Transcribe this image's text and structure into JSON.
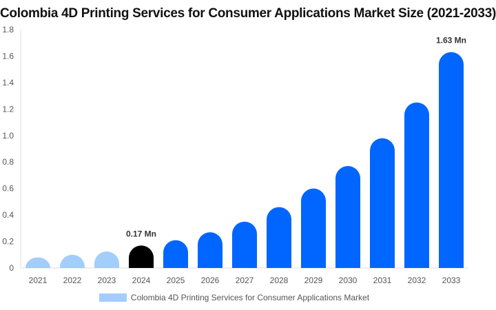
{
  "chart_data": {
    "type": "bar",
    "title": "Colombia 4D Printing Services for Consumer Applications Market Size (2021-2033)",
    "categories": [
      "2021",
      "2022",
      "2023",
      "2024",
      "2025",
      "2026",
      "2027",
      "2028",
      "2029",
      "2030",
      "2031",
      "2032",
      "2033"
    ],
    "series": [
      {
        "name": "Colombia 4D Printing Services for Consumer Applications Market",
        "values": [
          0.08,
          0.1,
          0.125,
          0.17,
          0.21,
          0.27,
          0.35,
          0.46,
          0.6,
          0.77,
          0.98,
          1.25,
          1.63
        ]
      }
    ],
    "data_labels": [
      {
        "category": "2024",
        "text": "0.17 Mn"
      },
      {
        "category": "2033",
        "text": "1.63 Mn"
      }
    ],
    "ylim": [
      0,
      1.8
    ],
    "yticks": [
      0,
      0.2,
      0.4,
      0.6,
      0.8,
      1.0,
      1.2,
      1.4,
      1.6,
      1.8
    ],
    "ytick_labels": [
      "0",
      "0.2",
      "0.4",
      "0.6",
      "0.8",
      "1.0",
      "1.2",
      "1.4",
      "1.6",
      "1.8"
    ],
    "grid": false,
    "legend_position": "bottom",
    "colors": {
      "historical": "#a3cdfc",
      "base_year": "#000000",
      "forecast": "#0066ff",
      "legend": "#a3cdfc"
    }
  }
}
